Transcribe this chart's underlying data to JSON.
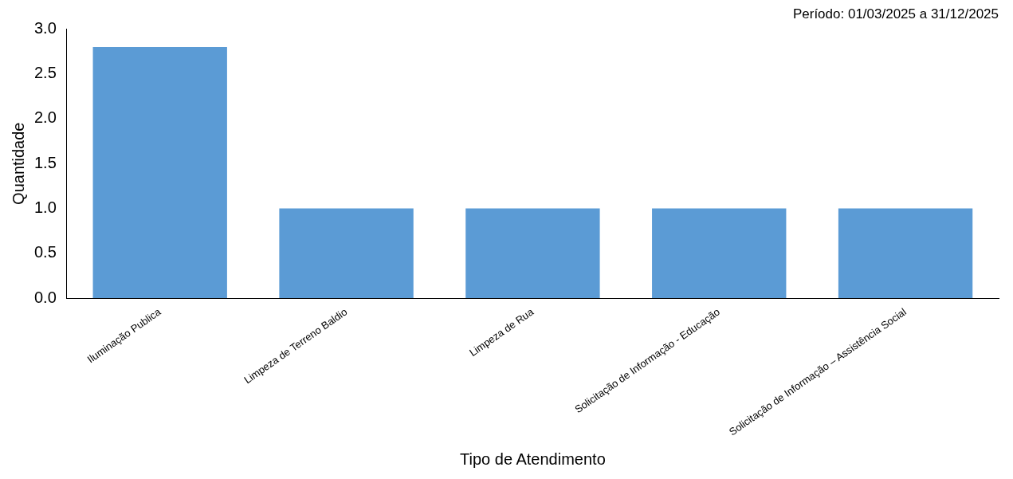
{
  "chart_data": {
    "type": "bar",
    "title": "Período: 01/03/2025 a 31/12/2025",
    "xlabel": "Tipo de Atendimento",
    "ylabel": "Quantidade",
    "categories": [
      "Iluminação Publica",
      "Limpeza de Terreno Baldio",
      "Limpeza de Rua",
      "Solicitação de Informação - Educação",
      "Solicitação de Informação – Assistência Social"
    ],
    "values": [
      2.8,
      1,
      1,
      1,
      1
    ],
    "color": "#5b9bd5",
    "ylim": [
      0,
      3
    ],
    "yticks": [
      {
        "value": 0,
        "label": "0.0"
      },
      0.5,
      {
        "value": 1,
        "label": "1.0"
      },
      1.5,
      {
        "value": 2,
        "label": "2.0"
      },
      2.5,
      {
        "value": 3,
        "label": "3.0"
      }
    ],
    "grid": false,
    "legend": false
  }
}
